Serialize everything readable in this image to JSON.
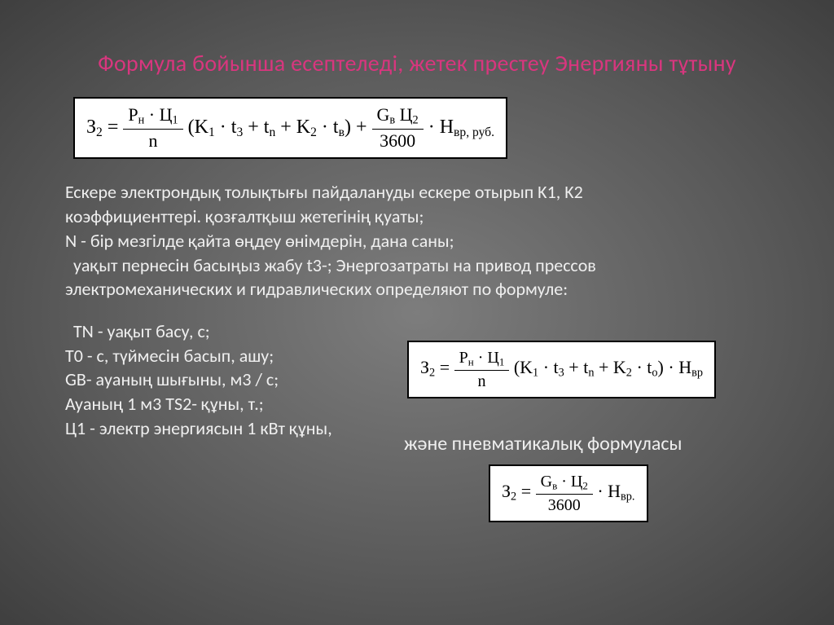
{
  "title": "Формула бойынша есептеледі, жетек престеу Энергияны тұтыну",
  "formula1": {
    "lhs": "З<sub>2</sub> =",
    "frac1_num": "P<sub>н</sub> · Ц<sub>1</sub>",
    "frac1_den": "n",
    "mid": "(K<sub>1</sub> · t<sub>3</sub> + t<sub>n</sub> + K<sub>2</sub> · t<sub>в</sub>) +",
    "frac2_num": "G<sub>в</sub> Ц<sub>2</sub>",
    "frac2_den": "3600",
    "tail": "· H<sub>вр, руб.</sub>"
  },
  "paragraph1": "Ескере электрондық толықтығы пайдалануды ескере отырып K1, K2 коэффициенттері. қозғалтқыш жетегінің қуаты;",
  "paragraph2": "N - бір мезгілде қайта өңдеу өнімдерін, дана саны;",
  "paragraph3": "  уақыт пернесін басыңыз жабу t3-; Энергозатраты на привод прессов электромеханических и гидравлических определяют по формуле:",
  "list1": "  TN - уақыт басу, с;",
  "list2": "T0 - с, түймесін басып, ашу;",
  "list3": "GВ- ауаның шығыны, м3 / с;",
  "list4": "Ауаның 1 м3 ТS2- құны, т.;",
  "list5": "Ц1 - электр энергиясын 1 кВт құны,",
  "sub_label": "және пневматикалық формуласы",
  "formula2": {
    "lhs": "З<sub>2</sub> =",
    "frac_num": "P<sub>н</sub> · Ц<sub>1</sub>",
    "frac_den": "n",
    "tail": "(K<sub>1</sub> · t<sub>3</sub> + t<sub>n</sub> + K<sub>2</sub> · t<sub>о</sub>) · H<sub>вр</sub>"
  },
  "formula3": {
    "lhs": "З<sub>2</sub> =",
    "frac_num": "G<sub>в</sub> · Ц<sub>2</sub>",
    "frac_den": "3600",
    "tail": "· H<sub>вр.</sub>"
  },
  "style": {
    "title_color": "#d8367e",
    "title_fontsize": 28,
    "body_color": "#efefef",
    "body_fontsize": 22,
    "formula_bg": "#ffffff",
    "formula_border": "#000000",
    "slide_bg_center": "#7d7d7d",
    "slide_bg_edge": "#3f3f3f"
  }
}
